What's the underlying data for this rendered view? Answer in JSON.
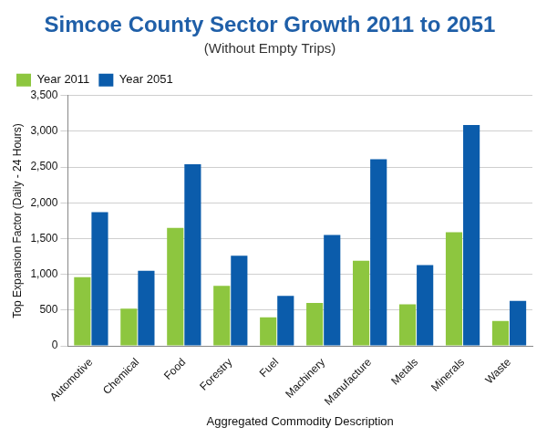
{
  "chart_data": {
    "type": "bar",
    "title": "Simcoe County Sector Growth 2011 to 2051",
    "subtitle": "(Without Empty Trips)",
    "x_label": "Aggregated Commodity Description",
    "y_label": "Top Expansion Factor (Daily - 24 Hours)",
    "categories": [
      "Automotive",
      "Chemical",
      "Food",
      "Forestry",
      "Fuel",
      "Machinery",
      "Manufacture",
      "Metals",
      "Minerals",
      "Waste"
    ],
    "series": [
      {
        "name": "Year 2011",
        "color": "#8dc63f",
        "values": [
          960,
          520,
          1650,
          840,
          400,
          600,
          1190,
          580,
          1590,
          350
        ]
      },
      {
        "name": "Year 2051",
        "color": "#0b5cab",
        "values": [
          1870,
          1050,
          2540,
          1260,
          700,
          1550,
          2610,
          1130,
          3090,
          630
        ]
      }
    ],
    "ylim": [
      0,
      3500
    ],
    "yticks": [
      0,
      500,
      {
        "value": 1000,
        "label": "1,000"
      },
      {
        "value": 1500,
        "label": "1,500"
      },
      {
        "value": 2000,
        "label": "2,000"
      },
      {
        "value": 2500,
        "label": "2,500"
      },
      {
        "value": 3000,
        "label": "3,000"
      },
      {
        "value": 3500,
        "label": "3,500"
      }
    ],
    "grid": true,
    "legend": "top-left"
  }
}
